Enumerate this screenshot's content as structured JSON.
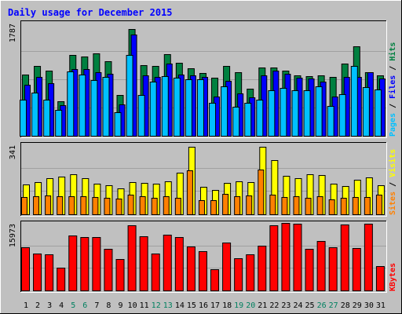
{
  "chart_data": {
    "type": "bar",
    "title": "Daily usage for December 2015",
    "days": [
      "1",
      "2",
      "3",
      "4",
      "5",
      "6",
      "7",
      "8",
      "9",
      "10",
      "11",
      "12",
      "13",
      "14",
      "15",
      "16",
      "17",
      "18",
      "19",
      "20",
      "21",
      "22",
      "23",
      "24",
      "25",
      "26",
      "27",
      "28",
      "29",
      "30",
      "31"
    ],
    "weekend_days": [
      "5",
      "6",
      "12",
      "13",
      "19",
      "20",
      "26",
      "27"
    ],
    "panels": [
      {
        "id": "hits-files-pages",
        "ymax": 1787,
        "ytick_label": "1787",
        "legend": [
          "Pages",
          "/",
          "Files",
          "/",
          "Hits"
        ],
        "legend_colors": [
          "#00c0ff",
          "#000000",
          "#0000ff",
          "#000000",
          "#008040"
        ],
        "series": [
          {
            "name": "Hits",
            "color": "#008040",
            "values": [
              970,
              1100,
              1025,
              545,
              1280,
              1250,
              1300,
              1185,
              650,
              1690,
              1115,
              1100,
              1295,
              1150,
              1070,
              990,
              915,
              1100,
              1005,
              750,
              1080,
              1075,
              1035,
              960,
              945,
              950,
              925,
              1145,
              1410,
              1000,
              950
            ]
          },
          {
            "name": "Files",
            "color": "#0000ff",
            "values": [
              810,
              930,
              830,
              490,
              1050,
              1060,
              1010,
              975,
              500,
              1600,
              960,
              935,
              1140,
              970,
              950,
              930,
              620,
              870,
              675,
              605,
              960,
              1030,
              980,
              915,
              900,
              860,
              625,
              935,
              925,
              1005,
              910
            ]
          },
          {
            "name": "Pages",
            "color": "#00c0ff",
            "values": [
              570,
              680,
              575,
              405,
              1015,
              965,
              885,
              930,
              370,
              1280,
              650,
              860,
              945,
              915,
              895,
              890,
              525,
              785,
              455,
              525,
              570,
              720,
              755,
              715,
              725,
              780,
              470,
              655,
              1110,
              770,
              735
            ]
          }
        ]
      },
      {
        "id": "visits-sites",
        "ymax": 341,
        "ytick_label": "341",
        "legend": [
          "Sites",
          "/",
          "Visits"
        ],
        "legend_colors": [
          "#ff8000",
          "#000000",
          "#ffff00"
        ],
        "series": [
          {
            "name": "Visits",
            "color": "#ffff00",
            "values": [
              146,
              156,
              175,
              184,
              197,
              178,
              148,
              141,
              128,
              157,
              154,
              148,
              162,
              203,
              330,
              133,
              118,
              154,
              160,
              159,
              331,
              263,
              187,
              178,
              194,
              191,
              151,
              139,
              168,
              181,
              141
            ]
          },
          {
            "name": "Sites",
            "color": "#ff8000",
            "values": [
              85,
              87,
              93,
              89,
              90,
              89,
              84,
              80,
              77,
              94,
              90,
              81,
              90,
              82,
              213,
              68,
              69,
              98,
              87,
              93,
              218,
              97,
              84,
              88,
              82,
              90,
              71,
              81,
              83,
              84,
              94
            ]
          }
        ]
      },
      {
        "id": "kbytes",
        "ymax": 15973,
        "ytick_label": "15973",
        "legend": [
          "KBytes"
        ],
        "legend_colors": [
          "#ff0000"
        ],
        "series": [
          {
            "name": "KBytes",
            "color": "#ff0000",
            "values": [
              10200,
              8800,
              8500,
              5300,
              12950,
              12600,
              12650,
              9800,
              7400,
              15500,
              12800,
              8700,
              13100,
              12600,
              10400,
              9200,
              5000,
              11300,
              7700,
              8550,
              10600,
              15450,
              15900,
              15850,
              9800,
              11700,
              10300,
              15650,
              9950,
              15700,
              5700
            ]
          }
        ]
      }
    ]
  }
}
